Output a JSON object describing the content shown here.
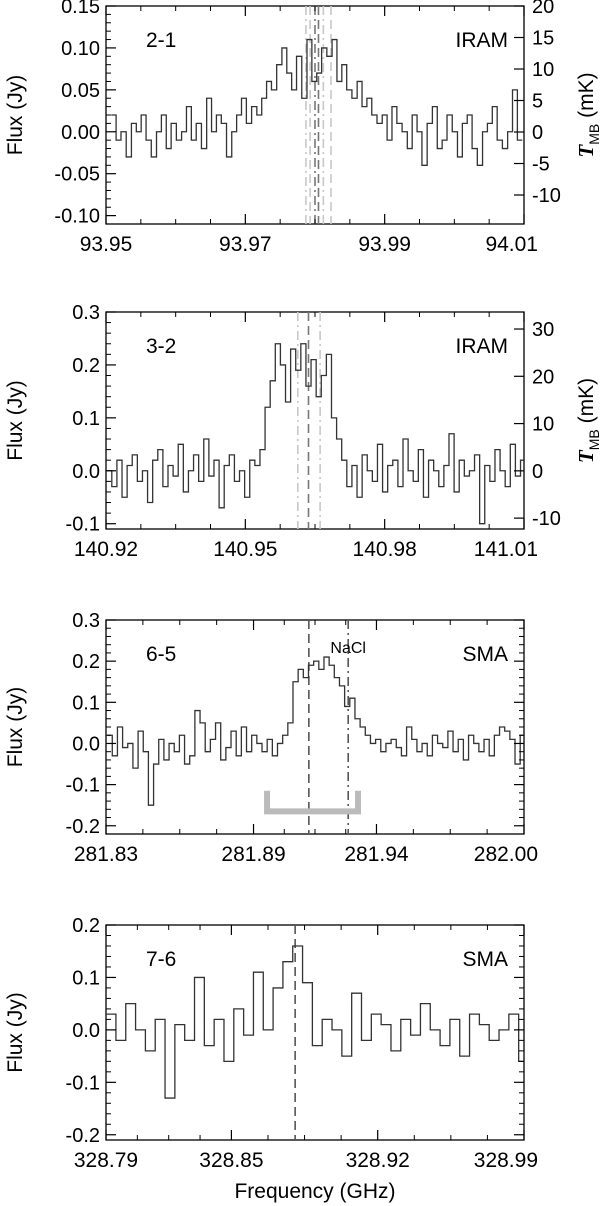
{
  "figure": {
    "xlabel": "Frequency (GHz)"
  },
  "chart_data": [
    {
      "type": "line",
      "transition": "2-1",
      "telescope": "IRAM",
      "ylabel": "Flux (Jy)",
      "y2label_main": "T",
      "y2label_sub": "MB",
      "y2label_unit": "(mK)",
      "xlim": [
        93.95,
        94.01
      ],
      "ylim": [
        -0.11,
        0.15
      ],
      "y2lim": [
        -14.6,
        20
      ],
      "xticks": [
        93.95,
        93.97,
        93.99,
        94.01
      ],
      "xticklabels": [
        "93.95",
        "93.97",
        "93.99",
        "94.01"
      ],
      "yticks": [
        -0.1,
        -0.05,
        0.0,
        0.05,
        0.1,
        0.15
      ],
      "yticklabels": [
        "-0.10",
        "-0.05",
        "0.00",
        "0.05",
        "0.10",
        "0.15"
      ],
      "y2ticks": [
        -10,
        -5,
        0,
        5,
        10,
        15,
        20
      ],
      "y2ticklabels": [
        "-10",
        "-5",
        "0",
        "5",
        "10",
        "15",
        "20"
      ],
      "line_markers": [
        {
          "x": 93.9787,
          "style": "dash-dot",
          "color": "#c8c8c8"
        },
        {
          "x": 93.9793,
          "style": "dash",
          "color": "#c8c8c8"
        },
        {
          "x": 93.98,
          "style": "dash-dot",
          "color": "#777777"
        },
        {
          "x": 93.9805,
          "style": "dash",
          "color": "#777777"
        },
        {
          "x": 93.9812,
          "style": "dash-dot",
          "color": "#c8c8c8"
        },
        {
          "x": 93.9823,
          "style": "dash",
          "color": "#c8c8c8"
        }
      ],
      "series": [
        {
          "x": [
            93.9511,
            93.9518,
            93.9525,
            93.9533,
            93.954,
            93.9547,
            93.9554,
            93.9561,
            93.9569,
            93.9576,
            93.9583,
            93.959,
            93.9597,
            93.9605,
            93.9612,
            93.9619,
            93.9626,
            93.9633,
            93.9641,
            93.9648,
            93.9655,
            93.9662,
            93.9669,
            93.9677,
            93.9684,
            93.9691,
            93.9698,
            93.9705,
            93.9713,
            93.972,
            93.9727,
            93.9734,
            93.9741,
            93.9749,
            93.9756,
            93.9763,
            93.977,
            93.9777,
            93.9785,
            93.9792,
            93.9799,
            93.9806,
            93.9813,
            93.9821,
            93.9828,
            93.9835,
            93.9842,
            93.9849,
            93.9857,
            93.9864,
            93.9871,
            93.9878,
            93.9885,
            93.9893,
            93.99,
            93.9907,
            93.9914,
            93.9921,
            93.9929,
            93.9936,
            93.9943,
            93.995,
            93.9957,
            93.9965,
            93.9972,
            93.9979,
            93.9986,
            93.9993,
            94.0001,
            94.0008,
            94.0015,
            94.0022,
            94.0029,
            94.0037,
            94.0044,
            94.0051,
            94.0058,
            94.0065,
            94.0073,
            94.008,
            94.0087,
            94.0094
          ],
          "y": [
            0.02,
            -0.01,
            0.0,
            -0.03,
            0.01,
            0.0,
            0.02,
            -0.01,
            -0.03,
            0.0,
            0.02,
            -0.02,
            0.01,
            -0.01,
            0.0,
            0.03,
            -0.01,
            0.01,
            -0.02,
            0.04,
            0.0,
            0.02,
            0.01,
            -0.03,
            0.0,
            0.02,
            0.04,
            0.01,
            0.03,
            0.02,
            0.04,
            0.06,
            0.05,
            0.08,
            0.1,
            0.07,
            0.05,
            0.09,
            0.04,
            0.11,
            0.06,
            0.07,
            0.1,
            0.09,
            0.11,
            0.06,
            0.08,
            0.05,
            0.04,
            0.06,
            0.03,
            0.04,
            0.02,
            0.01,
            0.02,
            -0.01,
            0.03,
            0.01,
            0.0,
            -0.02,
            0.02,
            0.0,
            -0.04,
            0.01,
            0.03,
            -0.02,
            -0.01,
            0.02,
            0.0,
            -0.03,
            0.01,
            0.02,
            -0.02,
            -0.04,
            0.0,
            0.01,
            0.03,
            -0.01,
            -0.02,
            0.0,
            0.05,
            -0.01
          ]
        }
      ]
    },
    {
      "type": "line",
      "transition": "3-2",
      "telescope": "IRAM",
      "ylabel": "Flux (Jy)",
      "y2label_main": "T",
      "y2label_sub": "MB",
      "y2label_unit": "(mK)",
      "xlim": [
        140.92,
        141.01
      ],
      "ylim": [
        -0.11,
        0.3
      ],
      "y2lim": [
        -12.3,
        33.6
      ],
      "xticks": [
        140.92,
        140.95,
        140.98,
        141.01
      ],
      "xticklabels": [
        "140.92",
        "140.95",
        "140.98",
        "141.01"
      ],
      "yticks": [
        -0.1,
        0.0,
        0.1,
        0.2,
        0.3
      ],
      "yticklabels": [
        "-0.1",
        "0.0",
        "0.1",
        "0.2",
        "0.3"
      ],
      "y2ticks": [
        -10,
        0,
        10,
        20,
        30
      ],
      "y2ticklabels": [
        "-10",
        "0",
        "10",
        "20",
        "30"
      ],
      "line_markers": [
        {
          "x": 140.9613,
          "style": "dash-dot",
          "color": "#c8c8c8"
        },
        {
          "x": 140.9636,
          "style": "dash",
          "color": "#777777"
        },
        {
          "x": 140.9661,
          "style": "dash-dot",
          "color": "#c8c8c8"
        }
      ],
      "series": [
        {
          "x": [
            140.9207,
            140.9218,
            140.9229,
            140.924,
            140.9251,
            140.9262,
            140.9273,
            140.9284,
            140.9295,
            140.9306,
            140.9317,
            140.9328,
            140.9339,
            140.935,
            140.9361,
            140.9372,
            140.9383,
            140.9394,
            140.9405,
            140.9416,
            140.9427,
            140.9438,
            140.9449,
            140.946,
            140.9471,
            140.9482,
            140.9493,
            140.9504,
            140.9515,
            140.9526,
            140.9537,
            140.9548,
            140.9559,
            140.957,
            140.9581,
            140.9592,
            140.9603,
            140.9614,
            140.9625,
            140.9636,
            140.9647,
            140.9658,
            140.9669,
            140.968,
            140.9691,
            140.9702,
            140.9713,
            140.9724,
            140.9735,
            140.9746,
            140.9757,
            140.9768,
            140.9779,
            140.979,
            140.9801,
            140.9812,
            140.9823,
            140.9834,
            140.9845,
            140.9856,
            140.9867,
            140.9878,
            140.9889,
            140.99,
            140.9911,
            140.9922,
            140.9933,
            140.9944,
            140.9955,
            140.9966,
            140.9977,
            140.9988,
            140.9999,
            141.001,
            141.0021,
            141.0032,
            141.0043,
            141.0054,
            141.0065,
            141.0076,
            141.0087,
            141.0098
          ],
          "y": [
            0.0,
            -0.03,
            0.02,
            -0.05,
            0.01,
            0.03,
            -0.02,
            0.0,
            -0.06,
            0.02,
            0.04,
            -0.03,
            0.01,
            -0.01,
            0.05,
            -0.04,
            0.0,
            0.03,
            -0.02,
            0.06,
            -0.01,
            0.02,
            -0.07,
            0.01,
            0.03,
            -0.02,
            0.0,
            -0.05,
            0.02,
            0.01,
            0.04,
            0.12,
            0.17,
            0.24,
            0.2,
            0.13,
            0.23,
            0.19,
            0.24,
            0.16,
            0.21,
            0.14,
            0.18,
            0.22,
            0.1,
            0.06,
            0.02,
            -0.03,
            0.01,
            -0.05,
            0.03,
            0.0,
            -0.02,
            0.05,
            -0.04,
            0.01,
            0.02,
            -0.03,
            0.06,
            0.0,
            -0.02,
            0.04,
            -0.05,
            0.02,
            0.0,
            -0.03,
            0.01,
            0.07,
            -0.04,
            0.02,
            -0.01,
            0.0,
            0.03,
            -0.1,
            0.01,
            -0.02,
            0.04,
            0.0,
            -0.03,
            0.05,
            -0.01,
            0.02
          ]
        }
      ]
    },
    {
      "type": "line",
      "transition": "6-5",
      "telescope": "SMA",
      "ylabel": "Flux (Jy)",
      "xlim": [
        281.83,
        282.0
      ],
      "ylim": [
        -0.22,
        0.3
      ],
      "xticks": [
        281.83,
        281.89,
        281.94,
        282.0
      ],
      "xticklabels": [
        "281.83",
        "281.89",
        "281.94",
        "282.00"
      ],
      "yticks": [
        -0.2,
        -0.1,
        0.0,
        0.1,
        0.2,
        0.3
      ],
      "yticklabels": [
        "-0.2",
        "-0.1",
        "0.0",
        "0.1",
        "0.2",
        "0.3"
      ],
      "line_markers": [
        {
          "x": 281.9125,
          "style": "dash",
          "color": "#555555"
        },
        {
          "x": 281.9285,
          "style": "dash-dot",
          "color": "#555555",
          "label": "NaCl"
        }
      ],
      "bracket": {
        "x1": 281.8955,
        "x2": 281.9325,
        "y": -0.165,
        "height": 0.05,
        "color": "#bbbbbb"
      },
      "series": [
        {
          "x": [
            281.8315,
            281.8336,
            281.8357,
            281.8378,
            281.8399,
            281.842,
            281.8441,
            281.8462,
            281.8483,
            281.8504,
            281.8525,
            281.8546,
            281.8567,
            281.8588,
            281.8609,
            281.863,
            281.8651,
            281.8672,
            281.8693,
            281.8714,
            281.8735,
            281.8756,
            281.8777,
            281.8798,
            281.8819,
            281.884,
            281.8861,
            281.8882,
            281.8903,
            281.8924,
            281.8945,
            281.8966,
            281.8987,
            281.9008,
            281.9029,
            281.905,
            281.9071,
            281.9092,
            281.9113,
            281.9134,
            281.9155,
            281.9176,
            281.9197,
            281.9218,
            281.9239,
            281.926,
            281.9281,
            281.9302,
            281.9323,
            281.9344,
            281.9365,
            281.9386,
            281.9407,
            281.9428,
            281.9449,
            281.947,
            281.9491,
            281.9512,
            281.9533,
            281.9554,
            281.9575,
            281.9596,
            281.9617,
            281.9638,
            281.9659,
            281.968,
            281.9701,
            281.9722,
            281.9743,
            281.9764,
            281.9785,
            281.9806,
            281.9827,
            281.9848,
            281.9869,
            281.989,
            281.9911,
            281.9932,
            281.9953,
            281.9974,
            281.9995
          ],
          "y": [
            0.02,
            -0.03,
            0.04,
            -0.01,
            0.0,
            -0.06,
            0.03,
            -0.02,
            -0.15,
            -0.05,
            0.01,
            -0.04,
            0.0,
            -0.02,
            0.02,
            -0.05,
            -0.03,
            0.08,
            0.05,
            -0.02,
            0.01,
            0.05,
            -0.04,
            -0.01,
            0.03,
            -0.03,
            0.04,
            -0.02,
            0.02,
            0.0,
            -0.02,
            0.01,
            -0.03,
            0.0,
            0.02,
            0.05,
            0.15,
            0.18,
            0.16,
            0.19,
            0.2,
            0.18,
            0.21,
            0.19,
            0.16,
            0.14,
            0.09,
            0.11,
            0.06,
            0.04,
            0.02,
            0.0,
            0.01,
            -0.02,
            0.0,
            0.01,
            -0.01,
            -0.03,
            0.04,
            0.01,
            -0.02,
            0.0,
            -0.03,
            0.02,
            0.0,
            -0.01,
            0.03,
            -0.02,
            0.01,
            -0.04,
            0.02,
            0.0,
            -0.02,
            0.01,
            -0.03,
            0.02,
            0.04,
            0.03,
            0.01,
            -0.05,
            0.02
          ]
        }
      ]
    },
    {
      "type": "line",
      "transition": "7-6",
      "telescope": "SMA",
      "ylabel": "Flux (Jy)",
      "xlim": [
        328.79,
        328.99
      ],
      "ylim": [
        -0.21,
        0.2
      ],
      "xticks": [
        328.79,
        328.85,
        328.92,
        328.99
      ],
      "xticklabels": [
        "328.79",
        "328.85",
        "328.92",
        "328.99"
      ],
      "yticks": [
        -0.2,
        -0.1,
        0.0,
        0.1,
        0.2
      ],
      "yticklabels": [
        "-0.2",
        "-0.1",
        "0.0",
        "0.1",
        "0.2"
      ],
      "line_markers": [
        {
          "x": 328.8805,
          "style": "dash",
          "color": "#555555"
        }
      ],
      "series": [
        {
          "x": [
            328.7924,
            328.7971,
            328.8018,
            328.8065,
            328.8112,
            328.8159,
            328.8206,
            328.8253,
            328.83,
            328.8347,
            328.8394,
            328.8441,
            328.8488,
            328.8535,
            328.8582,
            328.8629,
            328.8676,
            328.8723,
            328.877,
            328.8817,
            328.8864,
            328.8911,
            328.8958,
            328.9005,
            328.9052,
            328.9099,
            328.9146,
            328.9193,
            328.924,
            328.9287,
            328.9334,
            328.9381,
            328.9428,
            328.9475,
            328.9522,
            328.9569,
            328.9616,
            328.9663,
            328.971,
            328.9757,
            328.9804,
            328.9851,
            328.9898
          ],
          "y": [
            0.03,
            -0.02,
            0.05,
            0.0,
            -0.04,
            0.02,
            -0.13,
            0.01,
            -0.02,
            0.1,
            -0.03,
            0.02,
            -0.06,
            0.04,
            -0.01,
            0.11,
            0.0,
            0.08,
            0.13,
            0.16,
            0.09,
            -0.03,
            0.02,
            0.0,
            -0.05,
            0.07,
            -0.02,
            0.03,
            0.01,
            -0.04,
            0.02,
            -0.01,
            0.05,
            0.0,
            -0.03,
            0.02,
            -0.05,
            0.03,
            0.01,
            -0.02,
            0.0,
            0.03,
            -0.06
          ]
        }
      ]
    }
  ]
}
